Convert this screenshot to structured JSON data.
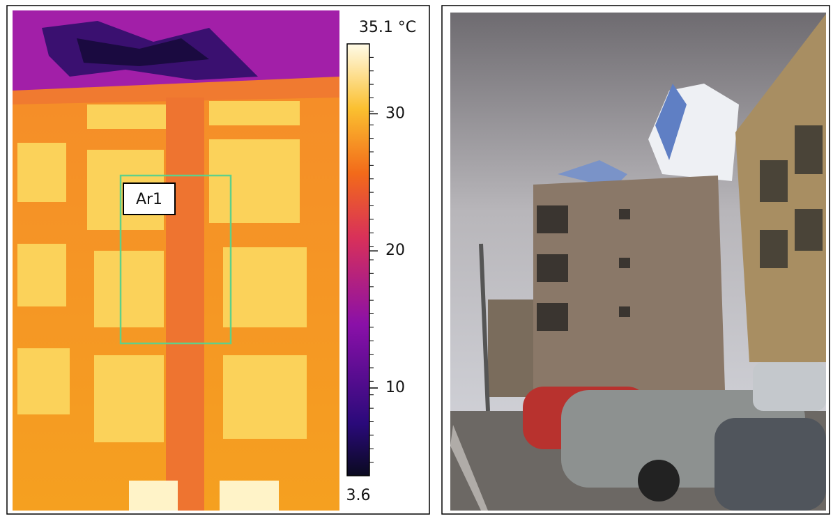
{
  "thermal": {
    "region_label": "Ar1",
    "scale": {
      "min": 3.6,
      "max": {
        "value": 35.1,
        "label": "35.1 °C"
      },
      "ticks": [
        10,
        20,
        30
      ]
    }
  }
}
